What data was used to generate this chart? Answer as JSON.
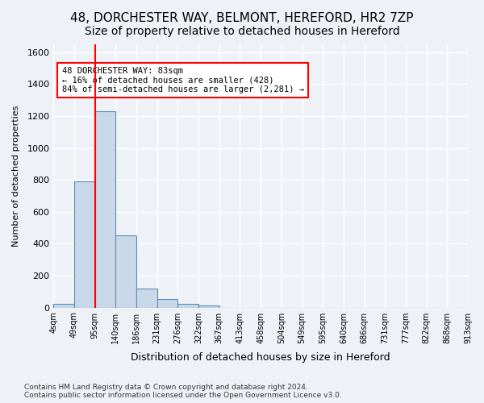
{
  "title_line1": "48, DORCHESTER WAY, BELMONT, HEREFORD, HR2 7ZP",
  "title_line2": "Size of property relative to detached houses in Hereford",
  "xlabel": "Distribution of detached houses by size in Hereford",
  "ylabel": "Number of detached properties",
  "footnote": "Contains HM Land Registry data © Crown copyright and database right 2024.\nContains public sector information licensed under the Open Government Licence v3.0.",
  "bin_labels": [
    "4sqm",
    "49sqm",
    "95sqm",
    "140sqm",
    "186sqm",
    "231sqm",
    "276sqm",
    "322sqm",
    "367sqm",
    "413sqm",
    "458sqm",
    "504sqm",
    "549sqm",
    "595sqm",
    "640sqm",
    "686sqm",
    "731sqm",
    "777sqm",
    "822sqm",
    "868sqm",
    "913sqm"
  ],
  "bar_values": [
    25,
    790,
    1230,
    450,
    120,
    55,
    25,
    12,
    0,
    0,
    0,
    0,
    0,
    0,
    0,
    0,
    0,
    0,
    0,
    0
  ],
  "bar_color": "#c8d8e8",
  "bar_edge_color": "#5b8db8",
  "annotation_text": "48 DORCHESTER WAY: 83sqm\n← 16% of detached houses are smaller (428)\n84% of semi-detached houses are larger (2,281) →",
  "annotation_box_color": "white",
  "annotation_box_edge_color": "red",
  "vline_color": "red",
  "ylim": [
    0,
    1650
  ],
  "yticks": [
    0,
    200,
    400,
    600,
    800,
    1000,
    1200,
    1400,
    1600
  ],
  "background_color": "#eef2f7",
  "grid_color": "white",
  "title_fontsize": 11,
  "subtitle_fontsize": 10
}
